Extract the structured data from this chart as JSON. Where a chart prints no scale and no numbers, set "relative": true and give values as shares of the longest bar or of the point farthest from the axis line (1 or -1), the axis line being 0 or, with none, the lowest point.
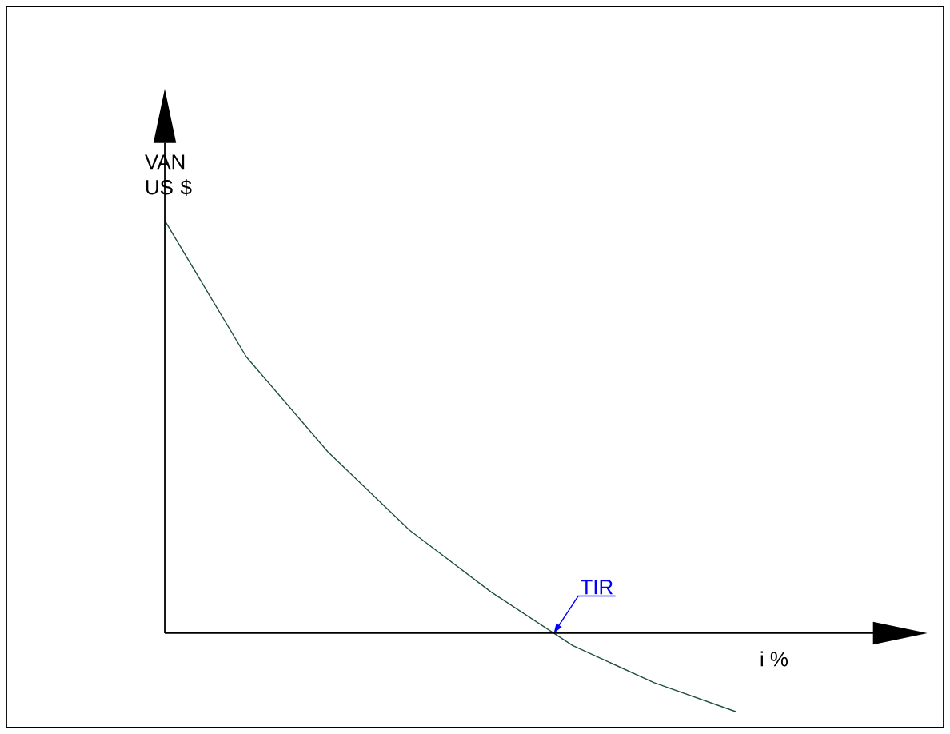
{
  "chart_data": {
    "type": "line",
    "relative": true,
    "xlabel": "i %",
    "ylabel": "VAN US $",
    "categories": [
      null,
      null,
      null,
      null,
      null,
      null,
      null,
      null
    ],
    "series": [
      {
        "color": "#1f4f3f",
        "values": [
          1,
          0.67,
          0.44,
          0.25,
          0.1,
          -0.03,
          -0.12,
          -0.19
        ]
      }
    ],
    "annotations": [
      "TIR"
    ]
  }
}
